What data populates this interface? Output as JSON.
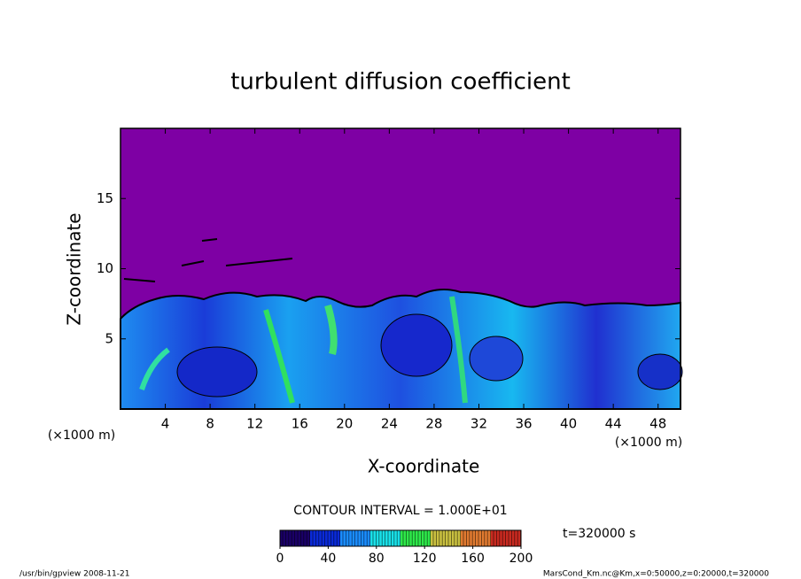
{
  "chart_data": {
    "type": "contour",
    "title": "turbulent diffusion coefficient",
    "x_label": "X-coordinate",
    "y_label": "Z-coordinate",
    "x_unit": "(×1000 m)",
    "y_unit": "(×1000 m)",
    "xlim": [
      0,
      50
    ],
    "xticks": [
      4,
      8,
      12,
      16,
      20,
      24,
      28,
      32,
      36,
      40,
      44,
      48
    ],
    "ylim": [
      0,
      20
    ],
    "yticks": [
      5,
      10,
      15
    ],
    "contour_interval": "CONTOUR INTERVAL = 1.000E+01",
    "time_label": "t=320000 s",
    "colorbar": {
      "lim": [
        0,
        200
      ],
      "ticks": [
        0,
        40,
        80,
        120,
        160,
        200
      ],
      "colormap": [
        "#1a0066",
        "#0a2ad8",
        "#1a8cff",
        "#19e0e8",
        "#2ee84a",
        "#c9c040",
        "#e07a30",
        "#c82a20"
      ]
    },
    "footer_left": "/usr/bin/gpview  2008-11-21",
    "footer_right": "MarsCond_Km.nc@Km,x=0:50000,z=0:20000,t=320000"
  }
}
